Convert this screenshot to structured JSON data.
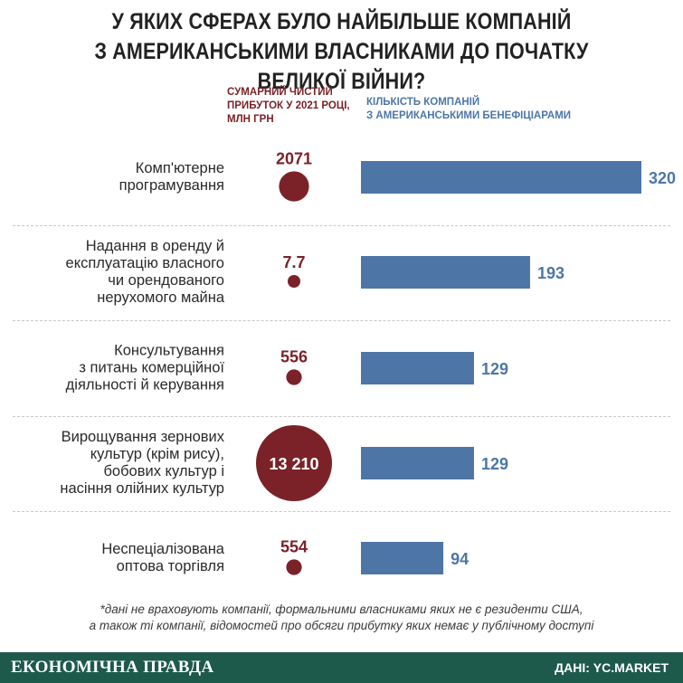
{
  "title_line1": "У ЯКИХ СФЕРАХ БУЛО НАЙБІЛЬШЕ КОМПАНІЙ",
  "title_line2": "З АМЕРИКАНСЬКИМИ ВЛАСНИКАМИ ДО ПОЧАТКУ ВЕЛИКОЇ ВІЙНИ?",
  "header_profit": [
    "СУМАРНИЙ ЧИСТИЙ",
    "ПРИБУТОК У 2021 РОЦІ,",
    "МЛН ГРН"
  ],
  "header_count": [
    "КІЛЬКІСТЬ КОМПАНІЙ",
    "З АМЕРИКАНСЬКИМИ БЕНЕФІЦІАРАМИ"
  ],
  "footnote": [
    "*дані не враховують компанії, формальними власниками яких не є резиденти США,",
    "а також ті компанії, відомостей про обсяги прибутку яких немає у публічному доступі"
  ],
  "logo": "ЕКОНОМІЧНА ПРАВДА",
  "source": "ДАНІ: YC.MARKET",
  "colors": {
    "profit": "#7a2228",
    "count": "#4d76a6",
    "footer_bg": "#1d5a4c"
  },
  "chart_data": {
    "type": "bar",
    "categories": [
      [
        "Комп'ютерне",
        "програмування"
      ],
      [
        "Надання в оренду й",
        "експлуатацію власного",
        "чи орендованого",
        "нерухомого майна"
      ],
      [
        "Консультування",
        "з питань комерційної",
        "діяльності й керування"
      ],
      [
        "Вирощування зернових",
        "культур (крім рису),",
        "бобових культур і",
        "насіння олійних культур"
      ],
      [
        "Неспеціалізована",
        "оптова торгівля"
      ]
    ],
    "series": [
      {
        "name": "КІЛЬКІСТЬ КОМПАНІЙ З АМЕРИКАНСЬКИМИ БЕНЕФІЦІАРАМИ",
        "values": [
          320,
          193,
          129,
          129,
          94
        ],
        "labels": [
          "320",
          "193",
          "129",
          "129",
          "94"
        ]
      },
      {
        "name": "СУМАРНИЙ ЧИСТИЙ ПРИБУТОК У 2021 РОЦІ, МЛН ГРН",
        "values": [
          2071,
          7.7,
          556,
          13210,
          554
        ],
        "labels": [
          "2071",
          "7.7",
          "556",
          "13 210",
          "554"
        ]
      }
    ]
  }
}
